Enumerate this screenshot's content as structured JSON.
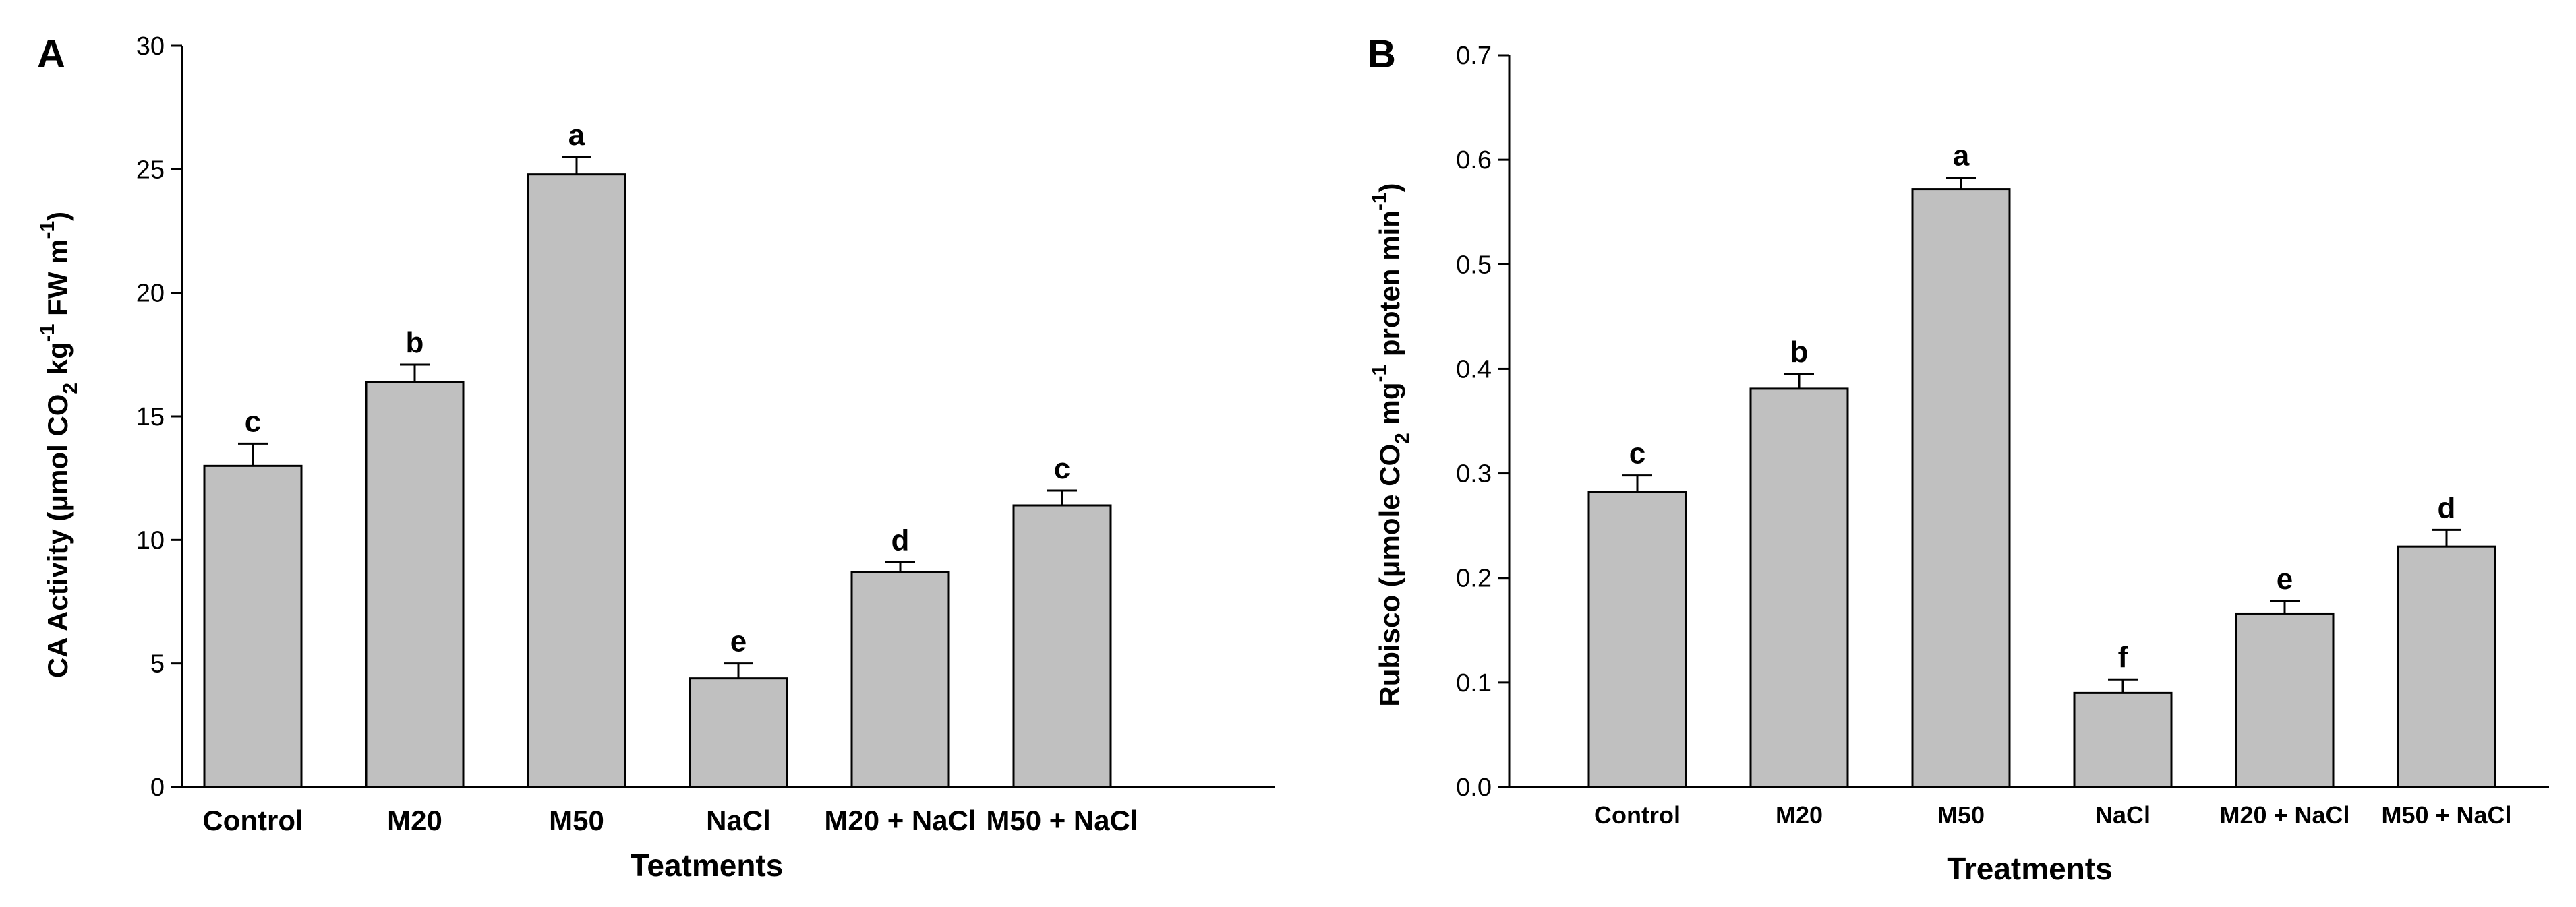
{
  "chart_data": [
    {
      "type": "bar",
      "panel_label": "A",
      "categories": [
        "Control",
        "M20",
        "M50",
        "NaCl",
        "M20 + NaCl",
        "M50 + NaCl"
      ],
      "values": [
        13.0,
        16.4,
        24.8,
        4.4,
        8.7,
        11.4
      ],
      "errors": [
        0.9,
        0.7,
        0.7,
        0.6,
        0.4,
        0.6
      ],
      "significance": [
        "c",
        "b",
        "a",
        "e",
        "d",
        "c"
      ],
      "xlabel": "Teatments",
      "ylabel": {
        "pre": "CA Activity (μmol CO",
        "sub": "2",
        "mid1": " kg",
        "sup1": "-1",
        "mid2": " FW m",
        "sup2": "-1",
        "post": ")"
      },
      "ylim": [
        0,
        30
      ],
      "yticks": [
        "0",
        "5",
        "10",
        "15",
        "20",
        "25",
        "30"
      ],
      "bar_color": "#c0c0c0"
    },
    {
      "type": "bar",
      "panel_label": "B",
      "categories": [
        "Control",
        "M20",
        "M50",
        "NaCl",
        "M20 + NaCl",
        "M50 + NaCl"
      ],
      "values": [
        0.282,
        0.381,
        0.572,
        0.09,
        0.166,
        0.23
      ],
      "errors": [
        0.016,
        0.014,
        0.011,
        0.013,
        0.012,
        0.016
      ],
      "significance": [
        "c",
        "b",
        "a",
        "f",
        "e",
        "d"
      ],
      "xlabel": "Treatments",
      "ylabel": {
        "pre": "Rubisco (μmole CO",
        "sub": "2",
        "mid1": " mg",
        "sup1": "-1",
        "mid2": " proten min",
        "sup2": "-1",
        "post": ")"
      },
      "ylim": [
        0,
        0.7
      ],
      "yticks": [
        "0.0",
        "0.1",
        "0.2",
        "0.3",
        "0.4",
        "0.5",
        "0.6",
        "0.7"
      ],
      "bar_color": "#c0c0c0"
    }
  ]
}
